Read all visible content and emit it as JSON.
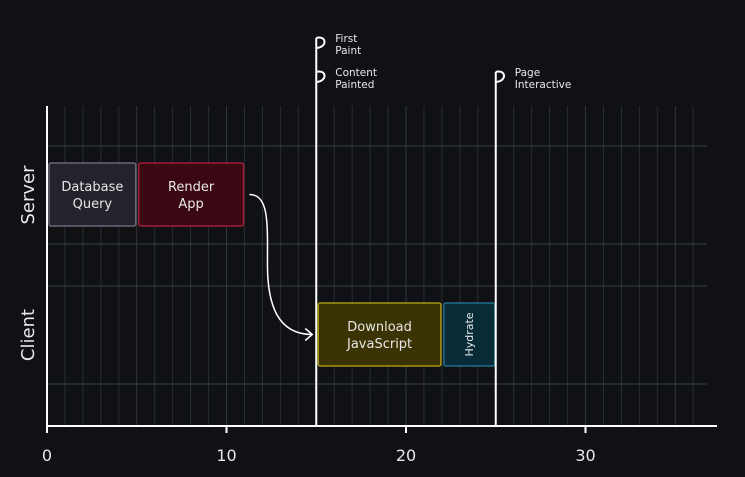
{
  "axis": {
    "x_ticks": [
      {
        "value": 0,
        "label": "0"
      },
      {
        "value": 10,
        "label": "10"
      },
      {
        "value": 20,
        "label": "20"
      },
      {
        "value": 30,
        "label": "30"
      }
    ],
    "x_range": [
      0,
      37
    ]
  },
  "lanes": [
    {
      "id": "server",
      "label": "Server"
    },
    {
      "id": "client",
      "label": "Client"
    }
  ],
  "tasks": [
    {
      "id": "database-query",
      "lane": "server",
      "start": 0,
      "end": 5,
      "lines": [
        "Database",
        "Query"
      ],
      "fill": "#25222b",
      "stroke": "#6b6676",
      "vertical": false
    },
    {
      "id": "render-app",
      "lane": "server",
      "start": 5,
      "end": 11,
      "lines": [
        "Render",
        "App"
      ],
      "fill": "#3a0713",
      "stroke": "#9d1f3a",
      "vertical": false
    },
    {
      "id": "download-javascript",
      "lane": "client",
      "start": 15,
      "end": 22,
      "lines": [
        "Download",
        "JavaScript"
      ],
      "fill": "#3a3303",
      "stroke": "#a89514",
      "vertical": false
    },
    {
      "id": "hydrate",
      "lane": "client",
      "start": 22,
      "end": 25,
      "lines": [
        "Hydrate"
      ],
      "fill": "#082b38",
      "stroke": "#1f6f8a",
      "vertical": true
    }
  ],
  "milestones": [
    {
      "id": "first-paint",
      "value": 15,
      "lines": [
        "First",
        "Paint"
      ],
      "level": 0
    },
    {
      "id": "content-painted",
      "value": 15,
      "lines": [
        "Content",
        "Painted"
      ],
      "level": 1
    },
    {
      "id": "page-interactive",
      "value": 25,
      "lines": [
        "Page",
        "Interactive"
      ],
      "level": 1
    }
  ],
  "arrow": {
    "from": "render-app",
    "to": "download-javascript"
  },
  "colors": {
    "background": "#0f1115",
    "grid": "#2a2d33",
    "axis": "#ffffff",
    "text": "#e8e8e8"
  }
}
